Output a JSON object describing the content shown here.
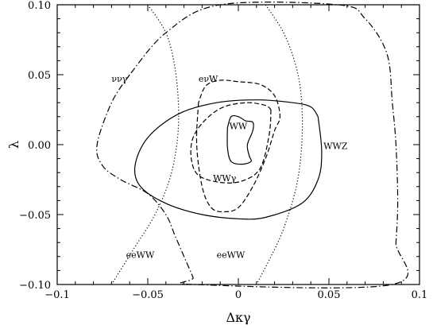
{
  "chart_data": {
    "type": "line",
    "xlabel": "Δκγ",
    "ylabel": "λ",
    "xlim": [
      -0.1,
      0.1
    ],
    "ylim": [
      -0.1,
      0.1
    ],
    "xticks": [
      "−0.1",
      "−0.05",
      "0",
      "0.05",
      "0.1"
    ],
    "yticks": [
      "0.10",
      "0.05",
      "0.00",
      "−0.05",
      "−0.10"
    ],
    "series": [
      {
        "name": "WW",
        "style": "solid",
        "points": [
          [
            -0.006,
            0.012
          ],
          [
            -0.004,
            0.02
          ],
          [
            0.0,
            0.02
          ],
          [
            0.004,
            0.017
          ],
          [
            0.008,
            0.016
          ],
          [
            0.008,
            0.01
          ],
          [
            0.005,
            0.0
          ],
          [
            0.006,
            -0.008
          ],
          [
            0.007,
            -0.012
          ],
          [
            0.002,
            -0.014
          ],
          [
            -0.004,
            -0.012
          ],
          [
            -0.006,
            -0.002
          ],
          [
            -0.006,
            0.012
          ]
        ]
      },
      {
        "name": "WWZ",
        "style": "solid",
        "points": [
          [
            0.044,
            0.02
          ],
          [
            0.046,
            -0.005
          ],
          [
            0.044,
            -0.025
          ],
          [
            0.035,
            -0.042
          ],
          [
            0.015,
            -0.052
          ],
          [
            0.0,
            -0.053
          ],
          [
            -0.02,
            -0.05
          ],
          [
            -0.04,
            -0.042
          ],
          [
            -0.054,
            -0.03
          ],
          [
            -0.057,
            -0.015
          ],
          [
            -0.05,
            0.005
          ],
          [
            -0.033,
            0.022
          ],
          [
            -0.012,
            0.03
          ],
          [
            0.01,
            0.032
          ],
          [
            0.03,
            0.03
          ],
          [
            0.04,
            0.027
          ],
          [
            0.044,
            0.02
          ]
        ]
      },
      {
        "name": "WWγ",
        "style": "dashed",
        "points": [
          [
            0.018,
            0.025
          ],
          [
            0.017,
            0.007
          ],
          [
            0.012,
            -0.017
          ],
          [
            0.002,
            -0.026
          ],
          [
            -0.01,
            -0.027
          ],
          [
            -0.022,
            -0.022
          ],
          [
            -0.026,
            -0.01
          ],
          [
            -0.025,
            0.005
          ],
          [
            -0.018,
            0.018
          ],
          [
            -0.008,
            0.027
          ],
          [
            0.005,
            0.03
          ],
          [
            0.015,
            0.028
          ],
          [
            0.018,
            0.025
          ]
        ]
      },
      {
        "name": "eνW",
        "style": "dashed",
        "points": [
          [
            -0.022,
            0.03
          ],
          [
            -0.023,
            0.0
          ],
          [
            -0.02,
            -0.03
          ],
          [
            -0.015,
            -0.045
          ],
          [
            -0.008,
            -0.048
          ],
          [
            0.0,
            -0.045
          ],
          [
            0.008,
            -0.03
          ],
          [
            0.015,
            -0.01
          ],
          [
            0.02,
            0.01
          ],
          [
            0.023,
            0.02
          ],
          [
            0.02,
            0.035
          ],
          [
            0.012,
            0.043
          ],
          [
            0.0,
            0.045
          ],
          [
            -0.01,
            0.046
          ],
          [
            -0.018,
            0.042
          ],
          [
            -0.022,
            0.03
          ]
        ]
      },
      {
        "name": "ννγ",
        "style": "dashdot",
        "points": [
          [
            -0.06,
            0.05
          ],
          [
            -0.07,
            0.03
          ],
          [
            -0.078,
            0.0
          ],
          [
            -0.075,
            -0.015
          ],
          [
            -0.065,
            -0.025
          ],
          [
            -0.05,
            -0.035
          ],
          [
            -0.04,
            -0.05
          ],
          [
            -0.035,
            -0.065
          ],
          [
            -0.03,
            -0.08
          ],
          [
            -0.025,
            -0.095
          ],
          [
            -0.024,
            -0.1
          ],
          [
            0.085,
            -0.1
          ],
          [
            0.087,
            -0.07
          ],
          [
            0.088,
            -0.04
          ],
          [
            0.087,
            0.0
          ],
          [
            0.085,
            0.03
          ],
          [
            0.082,
            0.065
          ],
          [
            0.07,
            0.09
          ],
          [
            0.055,
            0.1
          ],
          [
            -0.01,
            0.1
          ],
          [
            -0.04,
            0.08
          ],
          [
            -0.06,
            0.05
          ]
        ]
      },
      {
        "name": "eeWW",
        "style": "dotted",
        "points": [
          [
            -0.05,
            0.1
          ],
          [
            -0.04,
            0.08
          ],
          [
            -0.035,
            0.055
          ],
          [
            -0.033,
            0.025
          ],
          [
            -0.034,
            0.0
          ],
          [
            -0.038,
            -0.025
          ],
          [
            -0.046,
            -0.05
          ],
          [
            -0.058,
            -0.075
          ],
          [
            -0.07,
            -0.1
          ]
        ]
      },
      {
        "name": "eeWW",
        "style": "dotted",
        "points": [
          [
            0.015,
            0.1
          ],
          [
            0.025,
            0.08
          ],
          [
            0.032,
            0.055
          ],
          [
            0.035,
            0.03
          ],
          [
            0.035,
            0.0
          ],
          [
            0.032,
            -0.03
          ],
          [
            0.025,
            -0.06
          ],
          [
            0.018,
            -0.08
          ],
          [
            0.01,
            -0.1
          ]
        ]
      }
    ],
    "annotations": [
      {
        "text": "ννγ",
        "x": -0.07,
        "y": 0.045
      },
      {
        "text": "eνW",
        "x": -0.022,
        "y": 0.045
      },
      {
        "text": "WW",
        "x": -0.005,
        "y": 0.011
      },
      {
        "text": "WWZ",
        "x": 0.047,
        "y": -0.003
      },
      {
        "text": "WWγ",
        "x": -0.014,
        "y": -0.026
      },
      {
        "text": "eeWW",
        "x": -0.062,
        "y": -0.081
      },
      {
        "text": "eeWW",
        "x": -0.012,
        "y": -0.081
      }
    ]
  }
}
